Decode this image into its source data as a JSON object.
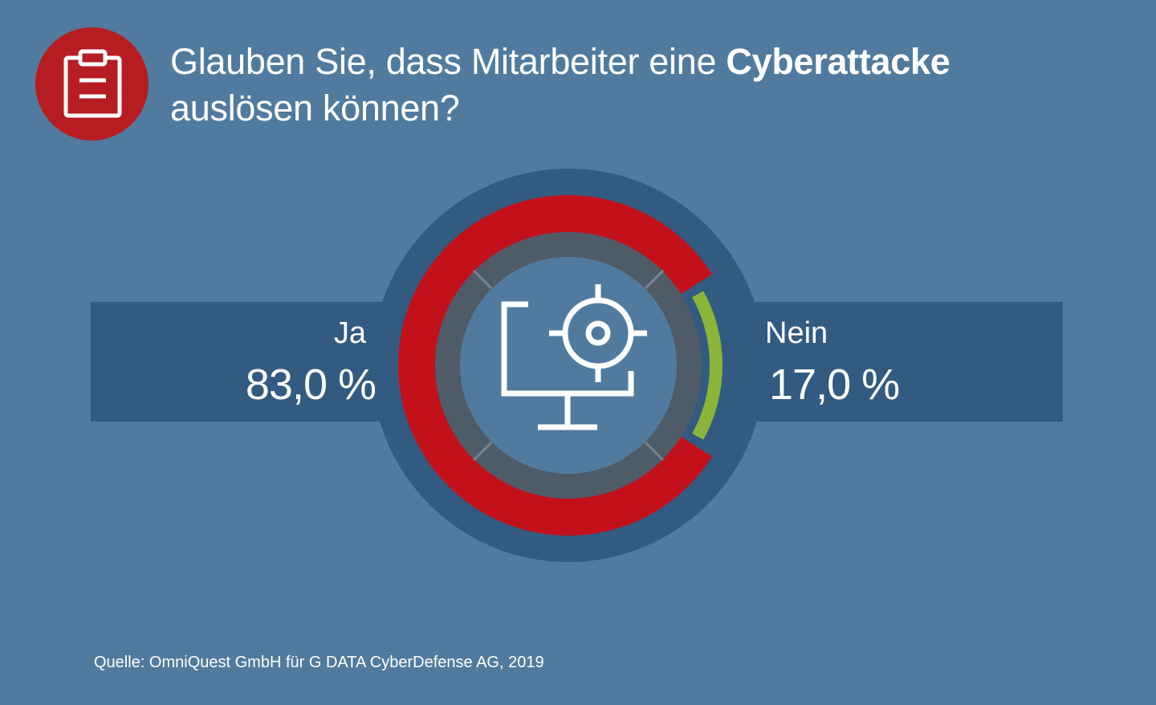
{
  "header": {
    "icon": "clipboard-icon",
    "title_regular": "Glauben Sie, dass Mitarbeiter eine",
    "title_bold": "Cyberattacke",
    "title_line2": "auslösen können?"
  },
  "chart_data": {
    "type": "pie",
    "style": "donut",
    "categories": [
      "Ja",
      "Nein"
    ],
    "values": [
      83.0,
      17.0
    ],
    "value_labels": [
      "83,0 %",
      "17,0 %"
    ],
    "colors": [
      "#c3111c",
      "#8bb43b"
    ],
    "center_icon": "monitor-target-icon"
  },
  "footer": {
    "source": "Quelle: OmniQuest GmbH für G DATA CyberDefense AG, 2019"
  },
  "colors": {
    "background": "#517b9e",
    "band": "#335a80",
    "accent_red": "#b51d22",
    "inner_ring": "#505b68"
  }
}
